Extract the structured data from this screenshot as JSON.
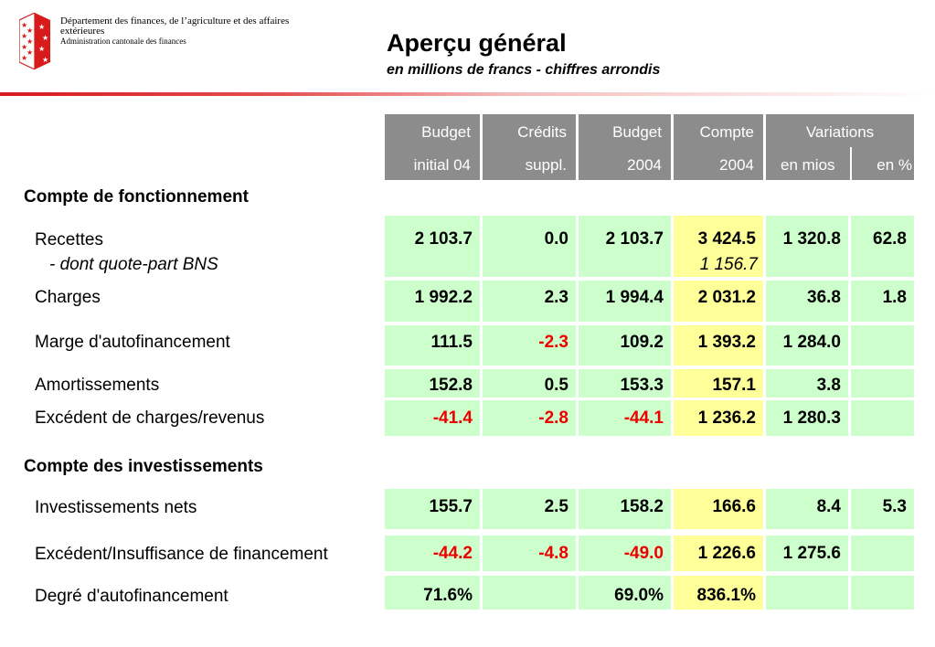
{
  "header": {
    "org_line1": "Département des finances, de l’agriculture et des affaires",
    "org_line2": "extérieures",
    "org_line3": "Administration cantonale des finances",
    "title": "Aperçu général",
    "subtitle": "en millions de francs - chiffres arrondis"
  },
  "columns": {
    "budget_initial": {
      "line1": "Budget",
      "line2": "initial 04"
    },
    "credits": {
      "line1": "Crédits",
      "line2": "suppl."
    },
    "budget": {
      "line1": "Budget",
      "line2": "2004"
    },
    "compte": {
      "line1": "Compte",
      "line2": "2004"
    },
    "variations": {
      "line1": "Variations",
      "mios": "en mios",
      "pct": "en %"
    }
  },
  "sections": {
    "fonctionnement": "Compte de fonctionnement",
    "investissements": "Compte des investissements"
  },
  "rows": {
    "recettes": {
      "label": "Recettes",
      "v": [
        "2 103.7",
        "0.0",
        "2 103.7",
        "3 424.5",
        "1 320.8",
        "62.8"
      ]
    },
    "quote_part": {
      "label": "- dont quote-part BNS",
      "compte": "1 156.7"
    },
    "charges": {
      "label": "Charges",
      "v": [
        "1 992.2",
        "2.3",
        "1 994.4",
        "2 031.2",
        "36.8",
        "1.8"
      ]
    },
    "marge": {
      "label": "Marge d'autofinancement",
      "v": [
        "111.5",
        "-2.3",
        "109.2",
        "1 393.2",
        "1 284.0",
        ""
      ]
    },
    "amortissements": {
      "label": "Amortissements",
      "v": [
        "152.8",
        "0.5",
        "153.3",
        "157.1",
        "3.8",
        ""
      ]
    },
    "excedent": {
      "label": "Excédent de charges/revenus",
      "v": [
        "-41.4",
        "-2.8",
        "-44.1",
        "1 236.2",
        "1 280.3",
        ""
      ]
    },
    "investissements_nets": {
      "label": "Investissements nets",
      "v": [
        "155.7",
        "2.5",
        "158.2",
        "166.6",
        "8.4",
        "5.3"
      ]
    },
    "financement": {
      "label": "Excédent/Insuffisance de financement",
      "v": [
        "-44.2",
        "-4.8",
        "-49.0",
        "1 226.6",
        "1 275.6",
        ""
      ]
    },
    "degre": {
      "label": "Degré d'autofinancement",
      "v": [
        "71.6%",
        "",
        "69.0%",
        "836.1%",
        "",
        ""
      ]
    }
  },
  "colors": {
    "header_bg": "#8c8c8c",
    "cell_green": "#ccffcc",
    "cell_yellow": "#ffff99",
    "negative": "#ee0000",
    "accent_red": "#d71a1a"
  }
}
